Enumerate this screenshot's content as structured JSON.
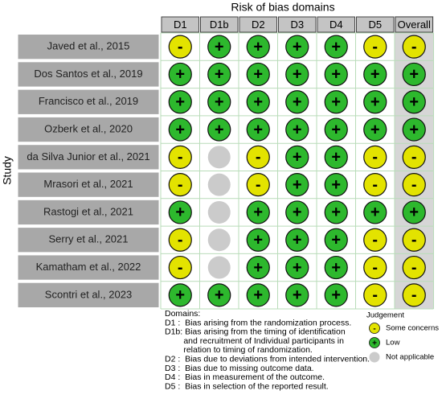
{
  "title": "Risk of bias domains",
  "y_label": "Study",
  "columns": [
    "D1",
    "D1b",
    "D2",
    "D3",
    "D4",
    "D5",
    "Overall"
  ],
  "rows": [
    {
      "study": "Javed et al., 2015",
      "judgements": [
        "-",
        "+",
        "+",
        "+",
        "+",
        "-",
        "-"
      ]
    },
    {
      "study": "Dos Santos et al., 2019",
      "judgements": [
        "+",
        "+",
        "+",
        "+",
        "+",
        "+",
        "+"
      ]
    },
    {
      "study": "Francisco et al., 2019",
      "judgements": [
        "+",
        "+",
        "+",
        "+",
        "+",
        "+",
        "+"
      ]
    },
    {
      "study": "Ozberk et al., 2020",
      "judgements": [
        "+",
        "+",
        "+",
        "+",
        "+",
        "+",
        "+"
      ]
    },
    {
      "study": "da Silva Junior et al., 2021",
      "judgements": [
        "-",
        null,
        "-",
        "+",
        "+",
        "-",
        "-"
      ]
    },
    {
      "study": "Mrasori et al., 2021",
      "judgements": [
        "-",
        null,
        "-",
        "+",
        "+",
        "-",
        "-"
      ]
    },
    {
      "study": "Rastogi et al., 2021",
      "judgements": [
        "+",
        null,
        "+",
        "+",
        "+",
        "+",
        "+"
      ]
    },
    {
      "study": "Serry et al., 2021",
      "judgements": [
        "-",
        null,
        "+",
        "+",
        "+",
        "-",
        "-"
      ]
    },
    {
      "study": "Kamatham et al., 2022",
      "judgements": [
        "-",
        null,
        "+",
        "+",
        "+",
        "-",
        "-"
      ]
    },
    {
      "study": "Scontri et al., 2023",
      "judgements": [
        "+",
        "+",
        "+",
        "+",
        "+",
        "-",
        "-"
      ]
    }
  ],
  "domains": {
    "heading": "Domains:",
    "lines": [
      "D1 :  Bias arising from the randomization process.",
      "D1b: Bias arising from the timing of identification",
      "        and recruitment of Individual participants in",
      "        relation to timing of randomization.",
      "D2 :  Bias due to deviations from intended intervention.",
      "D3 :  Bias due to missing outcome data.",
      "D4 :  Bias in measurement of the outcome.",
      "D5 :  Bias in selection of the reported result."
    ]
  },
  "legend": {
    "title": "Judgement",
    "items": [
      {
        "symbol": "-",
        "label": "Some concerns",
        "color": "#e3e300"
      },
      {
        "symbol": "+",
        "label": "Low",
        "color": "#2db82d"
      },
      {
        "symbol": null,
        "label": "Not applicable",
        "color": "#cbcbcb"
      }
    ]
  }
}
